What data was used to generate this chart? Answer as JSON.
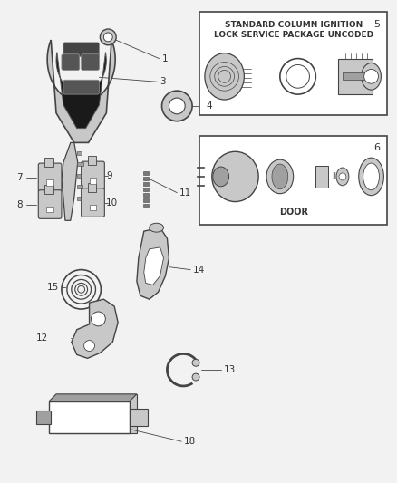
{
  "bg_color": "#f2f2f2",
  "line_color": "#444444",
  "text_color": "#333333",
  "box_color": "#ffffff",
  "fig_bg": "#f2f2f2",
  "white_bg": "#ffffff",
  "gray1": "#c8c8c8",
  "gray2": "#a0a0a0",
  "gray3": "#787878",
  "box1_text1": "STANDARD COLUMN IGNITION",
  "box1_text2": "LOCK SERVICE PACKAGE UNCODED",
  "box1_num": "5",
  "box2_text": "DOOR",
  "box2_num": "6"
}
